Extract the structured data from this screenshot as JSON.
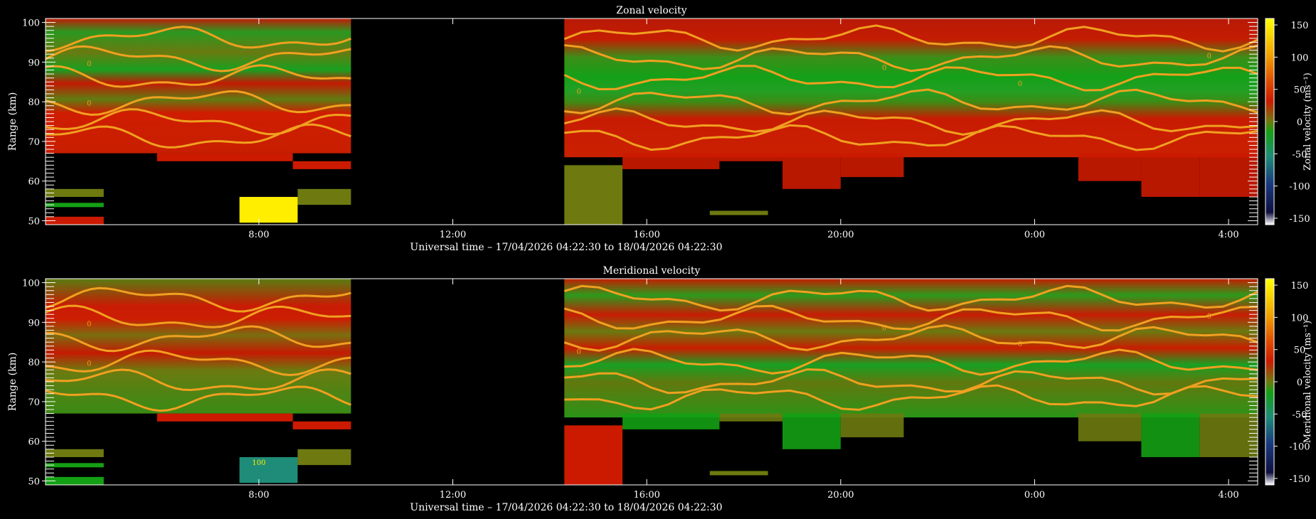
{
  "chart_data": [
    {
      "type": "heatmap",
      "title": "Zonal velocity",
      "xlabel": "Universal time – 17/04/2026 04:22:30 to 18/04/2026 04:22:30",
      "ylabel": "Range (km)",
      "colorbar_label": "Zonal velocity (ms⁻¹)",
      "x_tick_labels": [
        "8:00",
        "12:00",
        "16:00",
        "20:00",
        "0:00",
        "4:00"
      ],
      "x_tick_hours": [
        8,
        12,
        16,
        20,
        24,
        28
      ],
      "x_range_hours": [
        3.6,
        28.6
      ],
      "y_range": [
        49,
        101
      ],
      "y_tick_values": [
        50,
        60,
        70,
        80,
        90,
        100
      ],
      "colorbar_ticks": [
        150,
        100,
        50,
        0,
        -50,
        -100,
        -150
      ],
      "colorbar_range": [
        -160,
        160
      ],
      "contour_label": "0",
      "data_gap_hours": [
        9.9,
        14.3
      ],
      "grid": false
    },
    {
      "type": "heatmap",
      "title": "Meridional velocity",
      "xlabel": "Universal time – 17/04/2026 04:22:30 to 18/04/2026 04:22:30",
      "ylabel": "Range (km)",
      "colorbar_label": "Meridional velocity (ms⁻¹)",
      "x_tick_labels": [
        "8:00",
        "12:00",
        "16:00",
        "20:00",
        "0:00",
        "4:00"
      ],
      "x_tick_hours": [
        8,
        12,
        16,
        20,
        24,
        28
      ],
      "x_range_hours": [
        3.6,
        28.6
      ],
      "y_range": [
        49,
        101
      ],
      "y_tick_values": [
        50,
        60,
        70,
        80,
        90,
        100
      ],
      "colorbar_ticks": [
        150,
        100,
        50,
        0,
        -50,
        -100,
        -150
      ],
      "colorbar_range": [
        -160,
        160
      ],
      "contour_label": "0",
      "contour_label_2": "100",
      "data_gap_hours": [
        9.9,
        14.3
      ],
      "grid": false
    }
  ],
  "colors": {
    "red": "#cc1a00",
    "green": "#14a014",
    "olive": "#6e7a10",
    "contour": "#f0a020",
    "yellow": "#ffee00",
    "teal": "#1e8c78"
  }
}
